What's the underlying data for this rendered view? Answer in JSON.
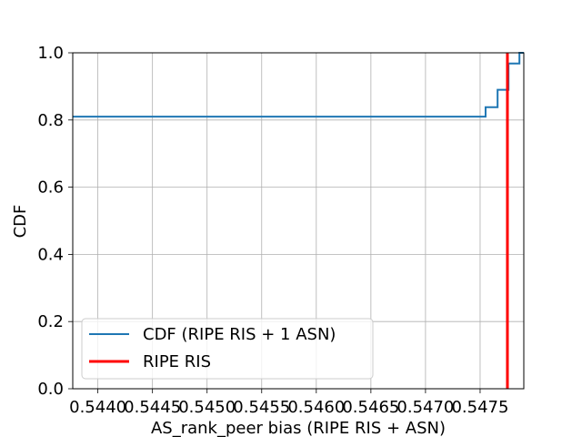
{
  "chart_data": {
    "type": "line",
    "xlabel": "AS_rank_peer bias (RIPE RIS + ASN)",
    "ylabel": "CDF",
    "xlim": [
      0.54377,
      0.5479
    ],
    "ylim": [
      0.0,
      1.0
    ],
    "x_ticks": [
      0.544,
      0.5445,
      0.545,
      0.5455,
      0.546,
      0.5465,
      0.547,
      0.5475
    ],
    "x_tick_labels": [
      "0.5440",
      "0.5445",
      "0.5450",
      "0.5455",
      "0.5460",
      "0.5465",
      "0.5470",
      "0.5475"
    ],
    "y_ticks": [
      0.0,
      0.2,
      0.4,
      0.6,
      0.8,
      1.0
    ],
    "y_tick_labels": [
      "0.0",
      "0.2",
      "0.4",
      "0.6",
      "0.8",
      "1.0"
    ],
    "grid": true,
    "legend_position": "lower-left",
    "series": [
      {
        "name": "CDF (RIPE RIS + 1 ASN)",
        "color": "#1f77b4",
        "style": "step",
        "x": [
          0.54377,
          0.54755,
          0.54755,
          0.54766,
          0.54766,
          0.54776,
          0.54776,
          0.54786,
          0.54786,
          0.5479
        ],
        "y": [
          0.81,
          0.81,
          0.838,
          0.838,
          0.89,
          0.89,
          0.968,
          0.968,
          1.0,
          1.0
        ]
      },
      {
        "name": "RIPE RIS",
        "color": "#ff0000",
        "style": "vline",
        "x": [
          0.54775
        ]
      }
    ]
  }
}
